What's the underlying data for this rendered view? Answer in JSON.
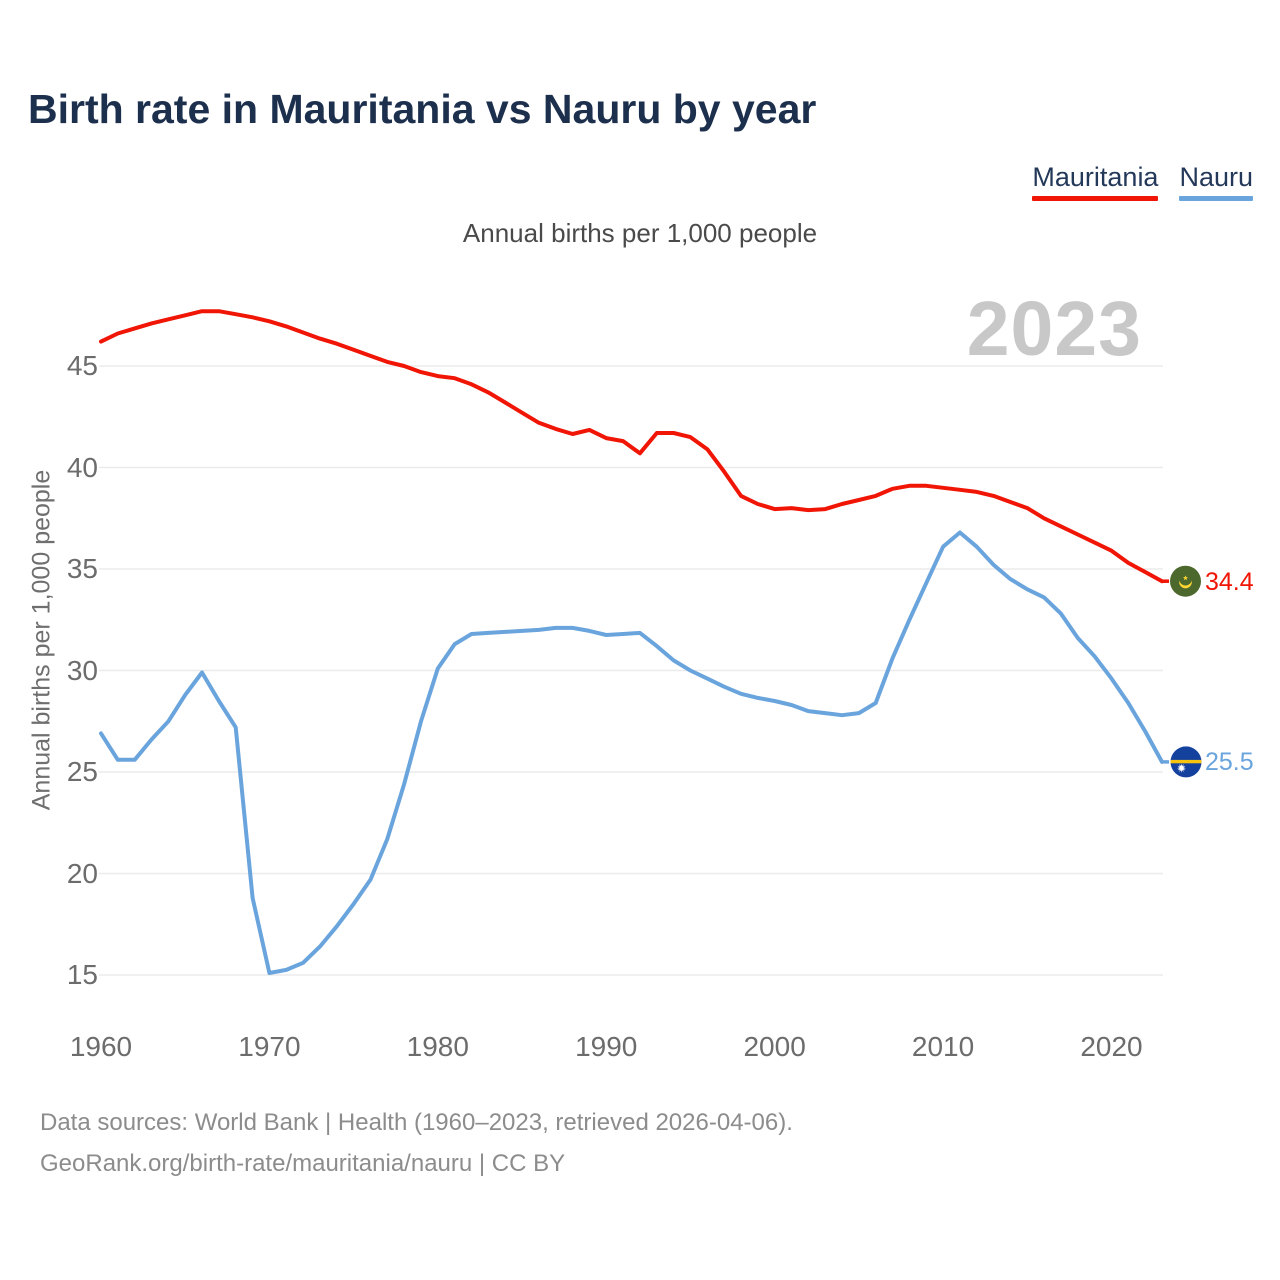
{
  "title": "Birth rate in Mauritania vs Nauru by year",
  "subtitle": "Annual births per 1,000 people",
  "watermark": "2023",
  "y_axis_label": "Annual births per 1,000 people",
  "legend": {
    "mauritania": {
      "label": "Mauritania",
      "color": "#f01505"
    },
    "nauru": {
      "label": "Nauru",
      "color": "#6aa4dd"
    }
  },
  "series_end": {
    "mauritania": "34.4",
    "nauru": "25.5"
  },
  "footer": {
    "line1": "Data sources: World Bank | Health (1960–2023, retrieved 2026-04-06).",
    "line2": "GeoRank.org/birth-rate/mauritania/nauru | CC BY"
  },
  "flags": {
    "mauritania": {
      "field": "#4d682c",
      "emblem": "#ffd633"
    },
    "nauru": {
      "field": "#14419e",
      "stripe": "#f6c40f",
      "star": "#ffffff"
    }
  },
  "chart_data": {
    "type": "line",
    "title": "Birth rate in Mauritania vs Nauru by year",
    "subtitle": "Annual births per 1,000 people",
    "xlabel": "Year",
    "ylabel": "Annual births per 1,000 people",
    "xlim": [
      1960,
      2023
    ],
    "ylim": [
      13.5,
      48.5
    ],
    "grid": "horizontal",
    "legend_position": "top-right",
    "xticks": [
      1960,
      1970,
      1980,
      1990,
      2000,
      2010,
      2020
    ],
    "yticks": [
      15,
      20,
      25,
      30,
      35,
      40,
      45
    ],
    "x": [
      1960,
      1961,
      1962,
      1963,
      1964,
      1965,
      1966,
      1967,
      1968,
      1969,
      1970,
      1971,
      1972,
      1973,
      1974,
      1975,
      1976,
      1977,
      1978,
      1979,
      1980,
      1981,
      1982,
      1983,
      1984,
      1985,
      1986,
      1987,
      1988,
      1989,
      1990,
      1991,
      1992,
      1993,
      1994,
      1995,
      1996,
      1997,
      1998,
      1999,
      2000,
      2001,
      2002,
      2003,
      2004,
      2005,
      2006,
      2007,
      2008,
      2009,
      2010,
      2011,
      2012,
      2013,
      2014,
      2015,
      2016,
      2017,
      2018,
      2019,
      2020,
      2021,
      2022,
      2023
    ],
    "series": [
      {
        "name": "Mauritania",
        "color": "#f01505",
        "end_label": "34.4",
        "end_year": 2023,
        "values": [
          46.2,
          46.6,
          46.85,
          47.1,
          47.3,
          47.5,
          47.7,
          47.7,
          47.55,
          47.4,
          47.2,
          46.95,
          46.65,
          46.35,
          46.1,
          45.8,
          45.5,
          45.2,
          45.0,
          44.7,
          44.5,
          44.4,
          44.1,
          43.7,
          43.2,
          42.7,
          42.2,
          41.9,
          41.65,
          41.85,
          41.45,
          41.3,
          40.7,
          41.7,
          41.7,
          41.5,
          40.9,
          39.8,
          38.6,
          38.2,
          37.95,
          38.0,
          37.9,
          37.95,
          38.2,
          38.4,
          38.6,
          38.95,
          39.1,
          39.1,
          39.0,
          38.9,
          38.8,
          38.6,
          38.3,
          38.0,
          37.5,
          37.1,
          36.7,
          36.3,
          35.9,
          35.3,
          34.85,
          34.4
        ]
      },
      {
        "name": "Nauru",
        "color": "#6aa4dd",
        "end_label": "25.5",
        "end_year": 2023,
        "values": [
          26.9,
          25.6,
          25.6,
          26.6,
          27.5,
          28.8,
          29.9,
          28.5,
          27.2,
          18.8,
          15.1,
          15.25,
          15.6,
          16.4,
          17.4,
          18.5,
          19.7,
          21.7,
          24.4,
          27.5,
          30.1,
          31.3,
          31.8,
          31.85,
          31.9,
          31.95,
          32.0,
          32.1,
          32.1,
          31.95,
          31.75,
          31.8,
          31.85,
          31.2,
          30.5,
          30.0,
          29.6,
          29.2,
          28.85,
          28.65,
          28.5,
          28.3,
          28.0,
          27.9,
          27.8,
          27.9,
          28.4,
          30.6,
          32.5,
          34.3,
          36.1,
          36.8,
          36.1,
          35.2,
          34.5,
          34.0,
          33.6,
          32.8,
          31.6,
          30.7,
          29.6,
          28.4,
          27.0,
          25.5
        ]
      }
    ]
  }
}
